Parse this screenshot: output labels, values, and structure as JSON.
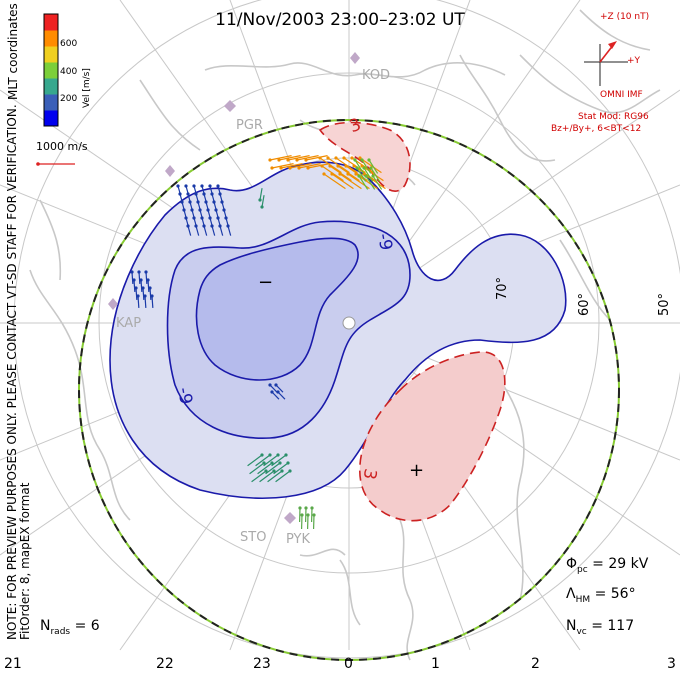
{
  "title": "11/Nov/2003 23:00–23:02 UT",
  "side_notes": {
    "line1": "NOTE: FOR PREVIEW PURPOSES ONLY. PLEASE CONTACT VT-SD STAFF FOR VERIFICATION.",
    "line2": "FitOrder: 8, mapEX format",
    "coordinates": "MLT coordinates"
  },
  "colorbar": {
    "label": "Vel [m/s]",
    "ticks": [
      "600",
      "400",
      "200"
    ],
    "colors": [
      "#0000ee",
      "#3a5fb8",
      "#37a88e",
      "#7ccf3a",
      "#f0d020",
      "#ff8c00",
      "#ee2222"
    ]
  },
  "velocity_scale": "1000 m/s",
  "imf": {
    "z_label": "+Z (10 nT)",
    "y_label": "+Y",
    "source": "OMNI IMF",
    "model": "Stat Mod: RG96",
    "condition": "Bz+/By+, 6<BT<12"
  },
  "stations": [
    "KOD",
    "PGR",
    "KAP",
    "STO",
    "PYK"
  ],
  "lat_labels": [
    "70°",
    "60°",
    "50°"
  ],
  "contour_labels": {
    "neg_top": "-9",
    "neg_left": "-9",
    "pos_top": "3",
    "pos_bottom": "3",
    "min_marker": "−",
    "max_marker": "+"
  },
  "mlt_hours": [
    "21",
    "22",
    "23",
    "0",
    "1",
    "2",
    "3"
  ],
  "stats": {
    "phi_pc": "= 29 kV",
    "hm_boundary": "= 56°",
    "n_rads": "= 6",
    "n_vc": "= 117"
  },
  "style": {
    "neg_fill": "#cfd3ee",
    "neg_inner": "#b2b9ec",
    "pos_fill": "#f4c8c8",
    "neg_line": "#1a1aaa",
    "pos_line": "#cc2222",
    "grid": "#c8c8c8",
    "coast": "#c8c8c8"
  }
}
